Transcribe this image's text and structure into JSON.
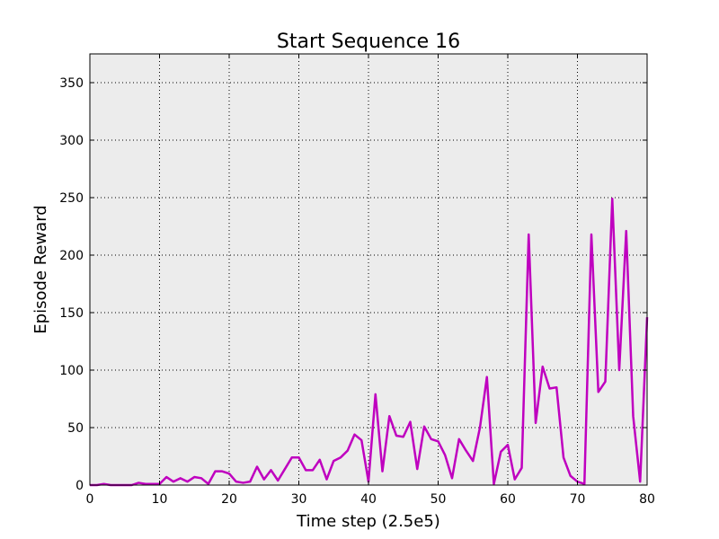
{
  "chart_data": {
    "type": "line",
    "title": "Start Sequence 16",
    "xlabel": "Time step (2.5e5)",
    "ylabel": "Episode Reward",
    "xlim": [
      0,
      80
    ],
    "ylim": [
      0,
      375
    ],
    "xticks": [
      0,
      10,
      20,
      30,
      40,
      50,
      60,
      70,
      80
    ],
    "yticks": [
      0,
      50,
      100,
      150,
      200,
      250,
      300,
      350
    ],
    "grid": true,
    "background_color": "#ececec",
    "series": [
      {
        "color": "#bf00bf",
        "x": [
          0,
          1,
          2,
          3,
          4,
          5,
          6,
          7,
          8,
          9,
          10,
          11,
          12,
          13,
          14,
          15,
          16,
          17,
          18,
          19,
          20,
          21,
          22,
          23,
          24,
          25,
          26,
          27,
          28,
          29,
          30,
          31,
          32,
          33,
          34,
          35,
          36,
          37,
          38,
          39,
          40,
          41,
          42,
          43,
          44,
          45,
          46,
          47,
          48,
          49,
          50,
          51,
          52,
          53,
          54,
          55,
          56,
          57,
          58,
          59,
          60,
          61,
          62,
          63,
          64,
          65,
          66,
          67,
          68,
          69,
          70,
          71,
          72,
          73,
          74,
          75,
          76,
          77,
          78,
          79,
          80
        ],
        "y": [
          0,
          0,
          1,
          0,
          0,
          0,
          0,
          2,
          1,
          1,
          1,
          7,
          3,
          6,
          3,
          7,
          6,
          1,
          12,
          12,
          10,
          3,
          2,
          3,
          16,
          5,
          13,
          4,
          14,
          24,
          24,
          13,
          13,
          22,
          5,
          21,
          24,
          30,
          44,
          39,
          3,
          79,
          12,
          60,
          43,
          42,
          55,
          14,
          51,
          40,
          38,
          26,
          6,
          40,
          30,
          21,
          50,
          94,
          1,
          29,
          35,
          5,
          15,
          218,
          54,
          103,
          84,
          85,
          24,
          8,
          3,
          1,
          218,
          81,
          90,
          249,
          100,
          221,
          60,
          3,
          146
        ]
      }
    ]
  }
}
